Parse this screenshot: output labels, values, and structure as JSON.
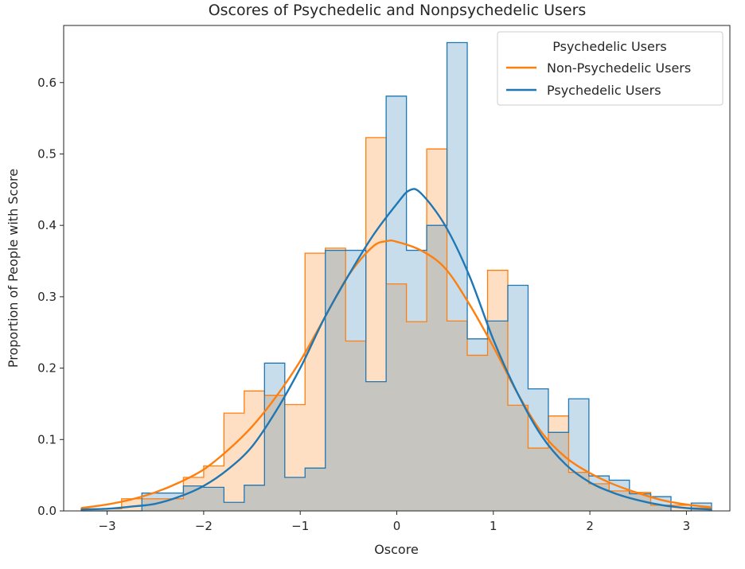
{
  "chart_data": {
    "type": "histogram",
    "title": "Oscores of Psychedelic and Nonpsychedelic Users",
    "xlabel": "Oscore",
    "ylabel": "Proportion of People with Score",
    "xlim": [
      -3.45,
      3.45
    ],
    "ylim": [
      0,
      0.68
    ],
    "x_ticks": [
      -3,
      -2,
      -1,
      0,
      1,
      2,
      3
    ],
    "y_ticks": [
      0.0,
      0.1,
      0.2,
      0.3,
      0.4,
      0.5,
      0.6
    ],
    "grid": false,
    "legend": {
      "title": "Psychedelic Users",
      "position": "top-right"
    },
    "bin_edges": [
      -3.27,
      -3.06,
      -2.85,
      -2.64,
      -2.42,
      -2.21,
      -2.0,
      -1.79,
      -1.58,
      -1.37,
      -1.16,
      -0.95,
      -0.74,
      -0.53,
      -0.32,
      -0.11,
      0.1,
      0.31,
      0.52,
      0.73,
      0.94,
      1.15,
      1.36,
      1.57,
      1.78,
      1.99,
      2.2,
      2.41,
      2.63,
      2.84,
      3.05,
      3.26
    ],
    "series": [
      {
        "name": "Non-Psychedelic Users",
        "color": "#ff7f0e",
        "fill": "#ffd8b4",
        "counts": [
          0.003,
          0.003,
          0.017,
          0.017,
          0.017,
          0.047,
          0.063,
          0.137,
          0.168,
          0.162,
          0.149,
          0.361,
          0.368,
          0.238,
          0.523,
          0.318,
          0.265,
          0.507,
          0.266,
          0.218,
          0.337,
          0.148,
          0.088,
          0.133,
          0.054,
          0.038,
          0.028,
          0.026,
          0.008,
          0.008,
          0.004
        ],
        "kde": [
          [
            -3.27,
            0.004
          ],
          [
            -3.0,
            0.009
          ],
          [
            -2.75,
            0.016
          ],
          [
            -2.5,
            0.026
          ],
          [
            -2.25,
            0.04
          ],
          [
            -2.0,
            0.058
          ],
          [
            -1.75,
            0.085
          ],
          [
            -1.5,
            0.118
          ],
          [
            -1.25,
            0.16
          ],
          [
            -1.0,
            0.21
          ],
          [
            -0.75,
            0.27
          ],
          [
            -0.5,
            0.33
          ],
          [
            -0.25,
            0.37
          ],
          [
            -0.1,
            0.378
          ],
          [
            0.0,
            0.377
          ],
          [
            0.25,
            0.365
          ],
          [
            0.5,
            0.34
          ],
          [
            0.75,
            0.29
          ],
          [
            1.0,
            0.23
          ],
          [
            1.25,
            0.165
          ],
          [
            1.5,
            0.11
          ],
          [
            1.75,
            0.075
          ],
          [
            2.0,
            0.053
          ],
          [
            2.25,
            0.037
          ],
          [
            2.5,
            0.025
          ],
          [
            2.75,
            0.015
          ],
          [
            3.0,
            0.009
          ],
          [
            3.26,
            0.005
          ]
        ]
      },
      {
        "name": "Psychedelic Users",
        "color": "#1f77b4",
        "fill": "#c3d7e8",
        "counts": [
          0.0,
          0.0,
          0.0,
          0.025,
          0.025,
          0.035,
          0.033,
          0.012,
          0.036,
          0.207,
          0.047,
          0.06,
          0.365,
          0.365,
          0.181,
          0.581,
          0.365,
          0.4,
          0.656,
          0.241,
          0.266,
          0.316,
          0.171,
          0.11,
          0.157,
          0.049,
          0.043,
          0.024,
          0.02,
          0.0,
          0.011
        ],
        "kde": [
          [
            -3.27,
            0.002
          ],
          [
            -3.0,
            0.003
          ],
          [
            -2.75,
            0.006
          ],
          [
            -2.5,
            0.01
          ],
          [
            -2.25,
            0.02
          ],
          [
            -2.0,
            0.035
          ],
          [
            -1.75,
            0.058
          ],
          [
            -1.5,
            0.09
          ],
          [
            -1.25,
            0.14
          ],
          [
            -1.0,
            0.2
          ],
          [
            -0.75,
            0.27
          ],
          [
            -0.5,
            0.33
          ],
          [
            -0.25,
            0.385
          ],
          [
            0.0,
            0.43
          ],
          [
            0.13,
            0.449
          ],
          [
            0.25,
            0.445
          ],
          [
            0.5,
            0.4
          ],
          [
            0.75,
            0.33
          ],
          [
            1.0,
            0.24
          ],
          [
            1.25,
            0.165
          ],
          [
            1.5,
            0.105
          ],
          [
            1.75,
            0.065
          ],
          [
            2.0,
            0.04
          ],
          [
            2.25,
            0.025
          ],
          [
            2.5,
            0.015
          ],
          [
            2.75,
            0.008
          ],
          [
            3.0,
            0.004
          ],
          [
            3.26,
            0.002
          ]
        ]
      }
    ]
  }
}
